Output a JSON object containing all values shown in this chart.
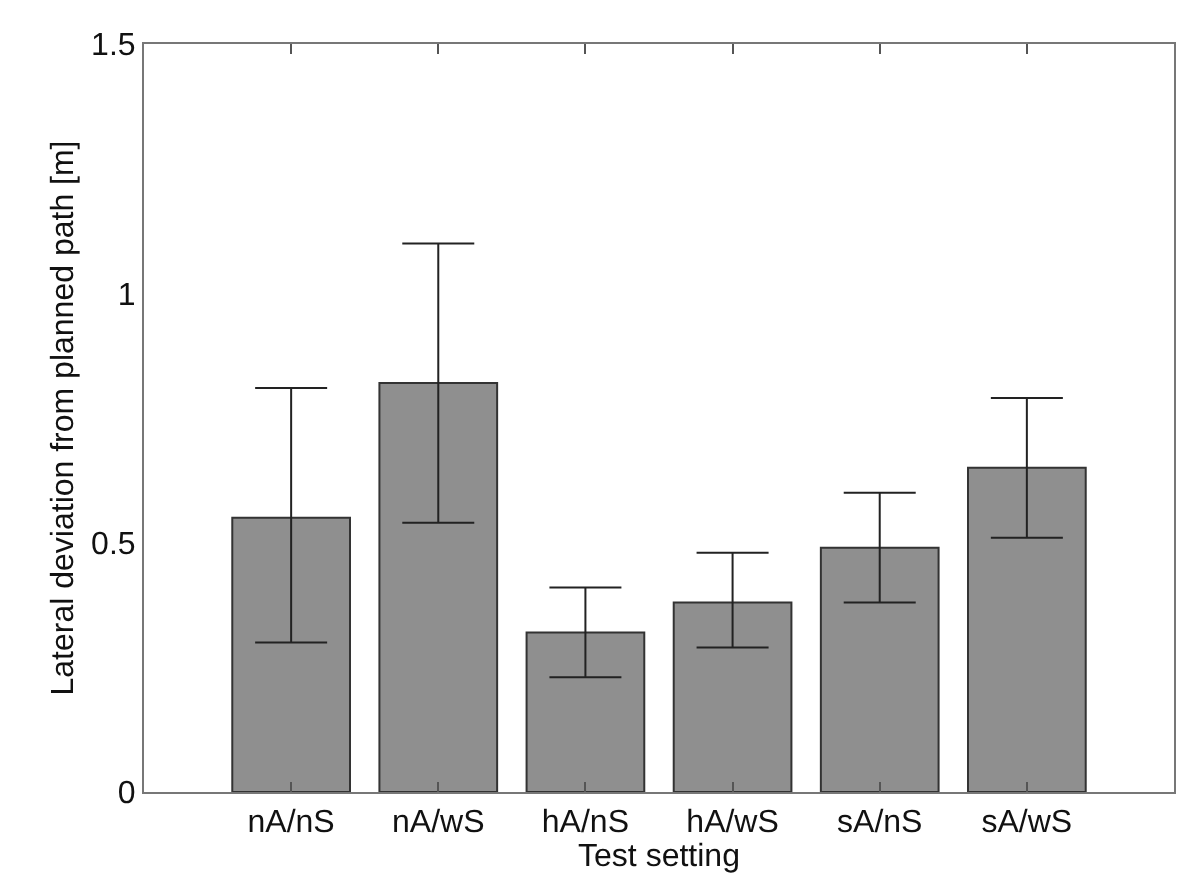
{
  "chart_data": {
    "type": "bar",
    "xlabel": "Test setting",
    "ylabel": "Lateral deviation from planned path [m]",
    "categories": [
      "nA/nS",
      "nA/wS",
      "hA/nS",
      "hA/wS",
      "sA/nS",
      "sA/wS"
    ],
    "values": [
      0.55,
      0.82,
      0.32,
      0.38,
      0.49,
      0.65
    ],
    "errors": [
      [
        0.3,
        0.81
      ],
      [
        0.54,
        1.1
      ],
      [
        0.23,
        0.41
      ],
      [
        0.29,
        0.48
      ],
      [
        0.38,
        0.6
      ],
      [
        0.51,
        0.79
      ]
    ],
    "color": "#8f8f8f",
    "ylim": [
      0,
      1.5
    ],
    "yticks": [
      0,
      0.5,
      1,
      1.5
    ]
  }
}
